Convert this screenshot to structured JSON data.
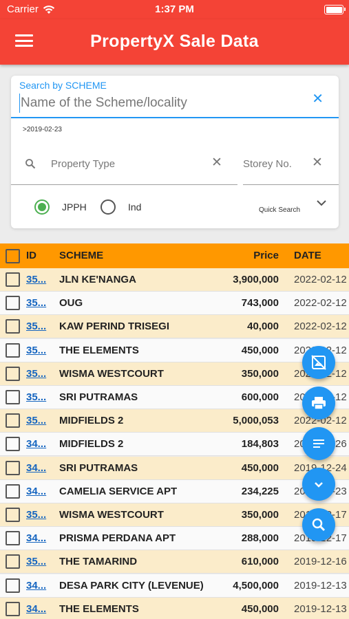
{
  "status_bar": {
    "carrier": "Carrier",
    "time": "1:37 PM"
  },
  "app_bar": {
    "title": "PropertyX Sale Data",
    "menu_icon": "hamburger-icon"
  },
  "search": {
    "label": "Search by SCHEME",
    "placeholder": "Name of the Scheme/locality",
    "date_filter": ">2019-02-23",
    "property_type_placeholder": "Property Type",
    "storey_placeholder": "Storey No.",
    "radio_options": [
      {
        "label": "JPPH",
        "checked": true
      },
      {
        "label": "Ind",
        "checked": false
      }
    ],
    "quick_search_label": "Quick Search"
  },
  "table": {
    "headers": {
      "id": "ID",
      "scheme": "SCHEME",
      "price": "Price",
      "date": "DATE"
    },
    "rows": [
      {
        "id": "35...",
        "scheme": "JLN KE'NANGA",
        "price": "3,900,000",
        "date": "2022-02-12"
      },
      {
        "id": "35...",
        "scheme": "OUG",
        "price": "743,000",
        "date": "2022-02-12"
      },
      {
        "id": "35...",
        "scheme": "KAW PERIND TRISEGI",
        "price": "40,000",
        "date": "2022-02-12"
      },
      {
        "id": "35...",
        "scheme": "THE ELEMENTS",
        "price": "450,000",
        "date": "2022-02-12"
      },
      {
        "id": "35...",
        "scheme": "WISMA WESTCOURT",
        "price": "350,000",
        "date": "2022-02-12"
      },
      {
        "id": "35...",
        "scheme": "SRI PUTRAMAS",
        "price": "600,000",
        "date": "2022-02-12"
      },
      {
        "id": "35...",
        "scheme": "MIDFIELDS 2",
        "price": "5,000,053",
        "date": "2022-02-12"
      },
      {
        "id": "34...",
        "scheme": "MIDFIELDS 2",
        "price": "184,803",
        "date": "2019-12-26"
      },
      {
        "id": "34...",
        "scheme": "SRI PUTRAMAS",
        "price": "450,000",
        "date": "2019-12-24"
      },
      {
        "id": "34...",
        "scheme": "CAMELIA SERVICE APT",
        "price": "234,225",
        "date": "2019-12-23"
      },
      {
        "id": "35...",
        "scheme": "WISMA WESTCOURT",
        "price": "350,000",
        "date": "2019-12-17"
      },
      {
        "id": "34...",
        "scheme": "PRISMA PERDANA APT",
        "price": "288,000",
        "date": "2019-12-17"
      },
      {
        "id": "35...",
        "scheme": "THE TAMARIND",
        "price": "610,000",
        "date": "2019-12-16"
      },
      {
        "id": "34...",
        "scheme": "DESA PARK CITY (LEVENUE)",
        "price": "4,500,000",
        "date": "2019-12-13"
      },
      {
        "id": "34...",
        "scheme": "THE ELEMENTS",
        "price": "450,000",
        "date": "2019-12-13"
      }
    ]
  },
  "fabs": [
    {
      "icon": "hide-image-icon"
    },
    {
      "icon": "print-icon"
    },
    {
      "icon": "filter-list-icon"
    },
    {
      "icon": "chevron-down-icon"
    },
    {
      "icon": "search-icon"
    }
  ],
  "colors": {
    "app_bar": "#f44336",
    "header_row": "#ff9800",
    "odd_row": "#fbecca",
    "fab": "#2196f3",
    "accent_blue": "#2196f3",
    "radio_green": "#4caf50"
  }
}
